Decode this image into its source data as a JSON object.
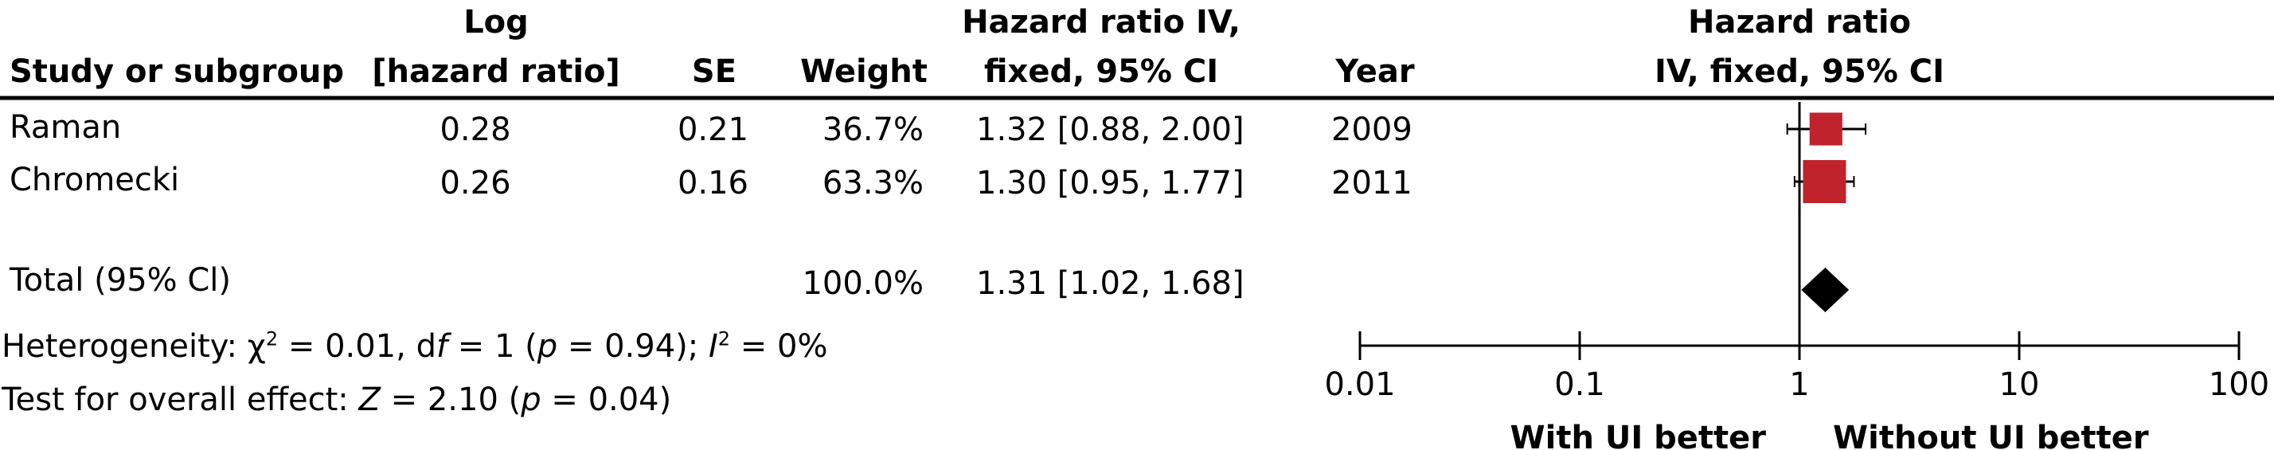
{
  "headers": {
    "study": "Study or subgroup",
    "log_line1": "Log",
    "log_line2": "[hazard ratio]",
    "se": "SE",
    "weight": "Weight",
    "hr_line1": "Hazard ratio IV,",
    "hr_line2": "fixed, 95% CI",
    "year": "Year",
    "plot_line1": "Hazard ratio",
    "plot_line2": "IV, fixed, 95% CI"
  },
  "rows": [
    {
      "study": "Raman",
      "log_hr": "0.28",
      "se": "0.21",
      "weight": "36.7%",
      "ci": "1.32 [0.88, 2.00]",
      "year": "2009"
    },
    {
      "study": "Chromecki",
      "log_hr": "0.26",
      "se": "0.16",
      "weight": "63.3%",
      "ci": "1.30 [0.95, 1.77]",
      "year": "2011"
    }
  ],
  "total": {
    "label": "Total (95% Cl)",
    "weight": "100.0%",
    "ci": "1.31 [1.02, 1.68]"
  },
  "footer": {
    "het_a": "Heterogeneity: χ",
    "het_sup1": "2",
    "het_b": " = 0.01, d",
    "het_df": "f",
    "het_c": " = 1 (",
    "het_p": "p",
    "het_d": " = 0.94); ",
    "het_I": "I",
    "het_sup2": "2",
    "het_e": " = 0%",
    "test_a": "Test for overall effect: ",
    "test_Z": "Z",
    "test_b": " = 2.10 (",
    "test_p": "p",
    "test_c": " = 0.04)"
  },
  "chart_data": {
    "type": "forest",
    "x_scale": "log",
    "xlim": [
      0.01,
      100
    ],
    "ticks": [
      0.01,
      0.1,
      1,
      10,
      100
    ],
    "tick_labels": [
      "0.01",
      "0.1",
      "1",
      "10",
      "100"
    ],
    "left_label": "With UI better",
    "right_label": "Without UI better",
    "studies": [
      {
        "name": "Raman",
        "hr": 1.32,
        "lower": 0.88,
        "upper": 2.0,
        "weight": 36.7
      },
      {
        "name": "Chromecki",
        "hr": 1.3,
        "lower": 0.95,
        "upper": 1.77,
        "weight": 63.3
      }
    ],
    "pooled": {
      "hr": 1.31,
      "lower": 1.02,
      "upper": 1.68
    },
    "colors": {
      "square": "#c0232c",
      "diamond": "#000000"
    }
  }
}
